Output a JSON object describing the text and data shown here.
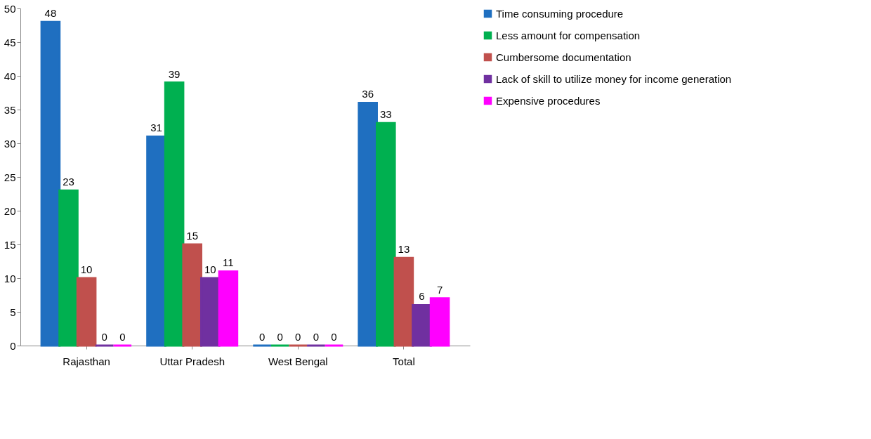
{
  "chart_data": {
    "type": "bar",
    "categories": [
      "Rajasthan",
      "Uttar Pradesh",
      "West Bengal",
      "Total"
    ],
    "series": [
      {
        "name": "Time consuming procedure",
        "color": "#1f6fc0",
        "values": [
          48,
          31,
          0,
          36
        ]
      },
      {
        "name": "Less amount for compensation",
        "color": "#00b050",
        "values": [
          23,
          39,
          0,
          33
        ]
      },
      {
        "name": "Cumbersome documentation",
        "color": "#c0504d",
        "values": [
          10,
          15,
          0,
          13
        ]
      },
      {
        "name": "Lack of skill to utilize money for income generation",
        "color": "#7030a0",
        "values": [
          0,
          10,
          0,
          6
        ]
      },
      {
        "name": "Expensive procedures",
        "color": "#ff00ff",
        "values": [
          0,
          11,
          0,
          7
        ]
      }
    ],
    "ylim": [
      0,
      50
    ],
    "yticks": [
      0,
      5,
      10,
      15,
      20,
      25,
      30,
      35,
      40,
      45,
      50
    ],
    "grid": false,
    "legend": "right",
    "data_labels": true
  }
}
